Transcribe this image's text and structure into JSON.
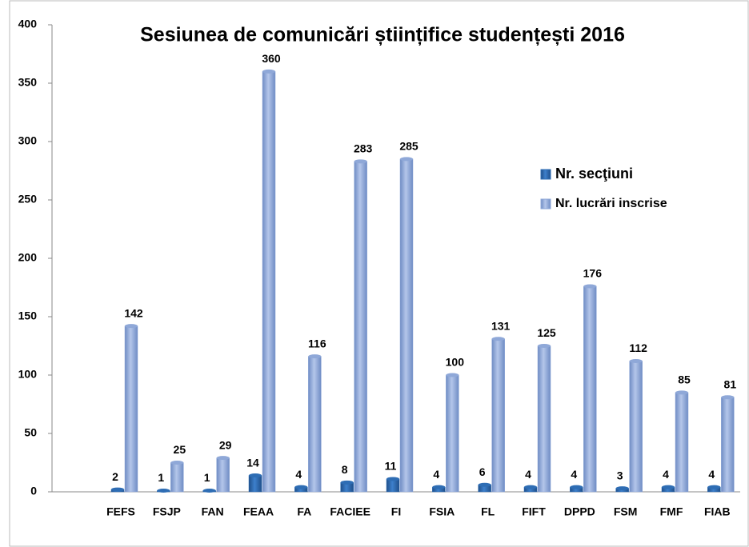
{
  "chart_data": {
    "type": "bar",
    "title": "Sesiunea de comunicări științifice studențești 2016",
    "categories": [
      null,
      "FEFS",
      "FSJP",
      "FAN",
      "FEAA",
      "FA",
      "FACIEE",
      "FI",
      "FSIA",
      "FL",
      "FIFT",
      "DPPD",
      "FSM",
      "FMF",
      "FIAB"
    ],
    "series": [
      {
        "name": "Nr. secţiuni",
        "color": "#2e6db4",
        "values": [
          null,
          2,
          1,
          1,
          14,
          4,
          8,
          11,
          4,
          6,
          4,
          4,
          3,
          4,
          4
        ]
      },
      {
        "name": "Nr. lucrări inscrise",
        "color": "#8fa8d8",
        "values": [
          null,
          142,
          25,
          29,
          360,
          116,
          283,
          285,
          100,
          131,
          125,
          176,
          112,
          85,
          81
        ]
      }
    ],
    "ylim": [
      0,
      400
    ],
    "yticks": [
      0,
      50,
      100,
      150,
      200,
      250,
      300,
      350,
      400
    ],
    "grid": false,
    "legend": "right"
  }
}
